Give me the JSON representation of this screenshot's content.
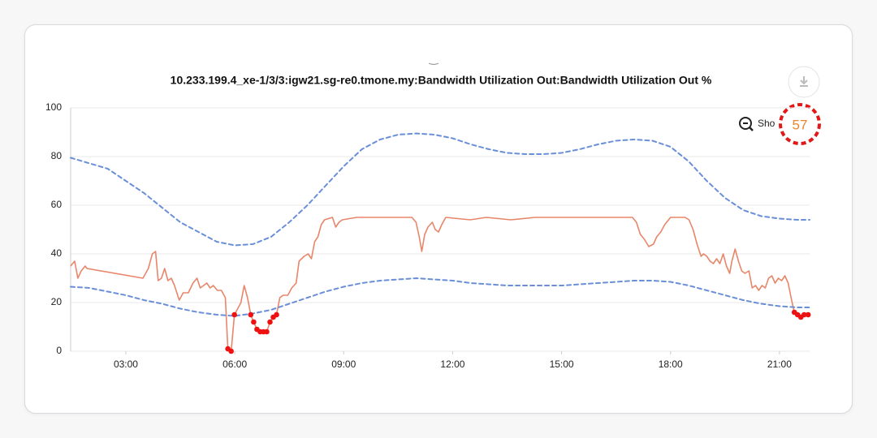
{
  "chart_data": {
    "type": "line",
    "title": "10.233.199.4_xe-1/3/3:igw21.sg-re0.tmone.my:Bandwidth Utilization Out:Bandwidth Utilization Out %",
    "xlim": [
      1.48,
      21.83
    ],
    "ylim": [
      0,
      100
    ],
    "yticks": [
      0,
      20,
      40,
      60,
      80,
      100
    ],
    "xticks": [
      {
        "value": 3,
        "label": "03:00"
      },
      {
        "value": 6,
        "label": "06:00"
      },
      {
        "value": 9,
        "label": "09:00"
      },
      {
        "value": 12,
        "label": "12:00"
      },
      {
        "value": 15,
        "label": "15:00"
      },
      {
        "value": 18,
        "label": "18:00"
      },
      {
        "value": 21,
        "label": "21:00"
      }
    ],
    "grid": true,
    "series": [
      {
        "color": "#e8866a",
        "style": "solid",
        "x": [
          1.48,
          1.59,
          1.68,
          1.77,
          1.88,
          1.93,
          3.47,
          3.62,
          3.73,
          3.82,
          3.89,
          3.98,
          4.07,
          4.16,
          4.25,
          4.34,
          4.47,
          4.58,
          4.72,
          4.85,
          4.96,
          5.05,
          5.14,
          5.23,
          5.32,
          5.41,
          5.52,
          5.63,
          5.74,
          5.81,
          5.9,
          5.99,
          6.17,
          6.26,
          6.35,
          6.44,
          6.52,
          6.61,
          6.7,
          6.79,
          6.88,
          6.97,
          7.06,
          7.15,
          7.24,
          7.33,
          7.46,
          7.57,
          7.69,
          7.77,
          7.91,
          8.02,
          8.11,
          8.2,
          8.29,
          8.38,
          8.47,
          8.69,
          8.78,
          8.87,
          8.96,
          9.36,
          9.81,
          10.25,
          10.7,
          10.88,
          10.99,
          11.08,
          11.15,
          11.23,
          11.32,
          11.44,
          11.52,
          11.61,
          11.7,
          11.81,
          12.48,
          12.93,
          13.6,
          14.27,
          15.16,
          16.06,
          16.95,
          17.06,
          17.17,
          17.28,
          17.4,
          17.53,
          17.62,
          17.73,
          17.84,
          18.0,
          18.4,
          18.51,
          18.62,
          18.73,
          18.84,
          18.91,
          19.0,
          19.09,
          19.18,
          19.27,
          19.36,
          19.45,
          19.54,
          19.63,
          19.69,
          19.78,
          19.87,
          19.96,
          20.05,
          20.16,
          20.25,
          20.34,
          20.43,
          20.52,
          20.61,
          20.7,
          20.79,
          20.88,
          20.97,
          21.06,
          21.15,
          21.24,
          21.32,
          21.41,
          21.5,
          21.59,
          21.68,
          21.79
        ],
        "values": [
          35,
          37,
          30,
          33,
          35,
          34,
          30,
          34,
          40,
          41,
          29,
          30,
          34,
          29,
          30,
          27,
          21,
          24,
          24,
          28,
          30,
          26,
          27,
          28,
          26,
          27,
          25,
          25,
          22,
          1,
          0,
          15,
          20,
          27,
          22,
          15,
          12,
          9,
          8,
          8,
          8,
          12,
          14,
          15,
          22,
          23,
          23,
          26,
          28,
          37,
          39,
          40,
          38,
          45,
          47,
          52,
          54,
          55,
          51,
          53,
          54,
          55,
          55,
          55,
          55,
          55,
          53,
          47,
          41,
          48,
          51,
          53,
          50,
          49,
          52,
          55,
          54,
          55,
          54,
          55,
          55,
          55,
          55,
          53,
          48,
          46,
          43,
          44,
          47,
          49,
          52,
          55,
          55,
          54,
          50,
          44,
          39,
          40,
          39,
          37,
          36,
          38,
          36,
          40,
          35,
          32,
          37,
          42,
          37,
          33,
          32,
          33,
          26,
          27,
          25,
          27,
          26,
          30,
          31,
          28,
          30,
          29,
          31,
          28,
          22,
          16,
          15,
          14,
          15,
          15
        ]
      },
      {
        "color": "#6a8fd8",
        "style": "dashed",
        "x": [
          1.48,
          2.5,
          3.5,
          4.5,
          5.5,
          6.0,
          6.5,
          7.0,
          7.5,
          8.0,
          8.5,
          9.0,
          9.5,
          10.0,
          10.5,
          11.0,
          11.5,
          12.0,
          12.5,
          13.0,
          13.5,
          14.0,
          14.5,
          15.0,
          15.5,
          16.0,
          16.5,
          17.0,
          17.5,
          18.0,
          18.5,
          19.0,
          19.5,
          20.0,
          20.5,
          21.0,
          21.5,
          21.83
        ],
        "values": [
          79.5,
          75,
          65,
          53,
          45,
          43.5,
          44,
          47,
          53,
          60,
          68,
          76,
          83,
          87,
          89,
          89.5,
          89,
          87.5,
          85,
          83,
          81.5,
          81,
          81,
          81.5,
          83,
          85,
          86.5,
          87,
          86.5,
          84,
          78,
          70,
          63,
          58,
          55.5,
          54.5,
          54,
          54
        ]
      },
      {
        "color": "#6a8fd8",
        "style": "dashed",
        "x": [
          1.48,
          2.0,
          2.5,
          3.0,
          3.5,
          4.0,
          4.5,
          5.0,
          5.5,
          6.0,
          6.5,
          7.0,
          7.5,
          8.0,
          8.5,
          9.0,
          9.5,
          10.0,
          10.5,
          11.0,
          11.5,
          12.0,
          12.5,
          13.0,
          13.5,
          14.0,
          14.5,
          15.0,
          15.5,
          16.0,
          16.5,
          17.0,
          17.5,
          18.0,
          18.5,
          19.0,
          19.5,
          20.0,
          20.5,
          21.0,
          21.5,
          21.83
        ],
        "values": [
          26.5,
          26,
          24.5,
          23,
          21,
          19.5,
          17.5,
          16,
          15,
          14.5,
          15.5,
          17,
          19.5,
          22,
          24.5,
          26.5,
          28,
          29,
          29.5,
          30,
          29.5,
          29,
          28,
          27.5,
          27,
          27,
          27,
          27,
          27.5,
          28,
          28.5,
          29,
          29,
          28.5,
          27,
          25,
          23,
          21,
          19.5,
          18.5,
          18,
          18
        ]
      },
      {
        "color": "#ee1111",
        "style": "points",
        "x": [
          5.81,
          5.9,
          5.99,
          6.44,
          6.52,
          6.61,
          6.7,
          6.79,
          6.88,
          6.97,
          7.06,
          7.15,
          21.41,
          21.5,
          21.59,
          21.68,
          21.79
        ],
        "values": [
          1,
          0,
          15,
          15,
          12,
          9,
          8,
          8,
          8,
          12,
          14,
          15,
          16,
          15,
          14,
          15,
          15
        ]
      }
    ]
  },
  "ui": {
    "zoom_label": "Sho",
    "badge": "57"
  }
}
